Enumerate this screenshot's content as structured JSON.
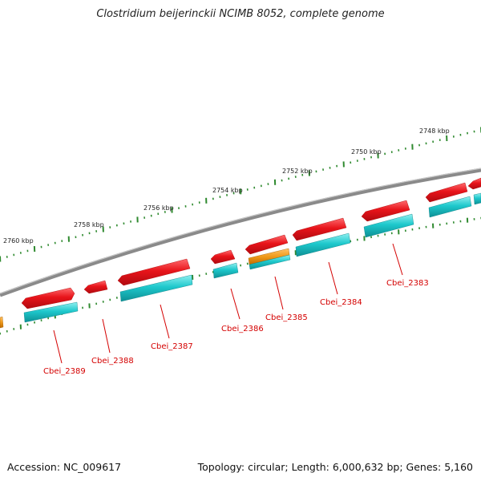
{
  "title": "Clostridium beijerinckii NCIMB 8052, complete genome",
  "footer": {
    "accession": "Accession: NC_009617",
    "stats": "Topology: circular; Length: 6,000,632 bp; Genes: 5,160"
  },
  "colors": {
    "backbone": "#8a8a8a",
    "gene_red": "#e8141a",
    "gene_cyan": "#1ec8cc",
    "gene_orange": "#f09a1a",
    "tick": "#2f8a2f",
    "label": "#d40000"
  },
  "scale_labels": [
    "2760 kbp",
    "2758 kbp",
    "2756 kbp",
    "2754 kbp",
    "2752 kbp",
    "2750 kbp",
    "2748 kbp"
  ],
  "gene_labels": [
    "Cbei_2389",
    "Cbei_2388",
    "Cbei_2387",
    "Cbei_2386",
    "Cbei_2385",
    "Cbei_2384",
    "Cbei_2383"
  ]
}
